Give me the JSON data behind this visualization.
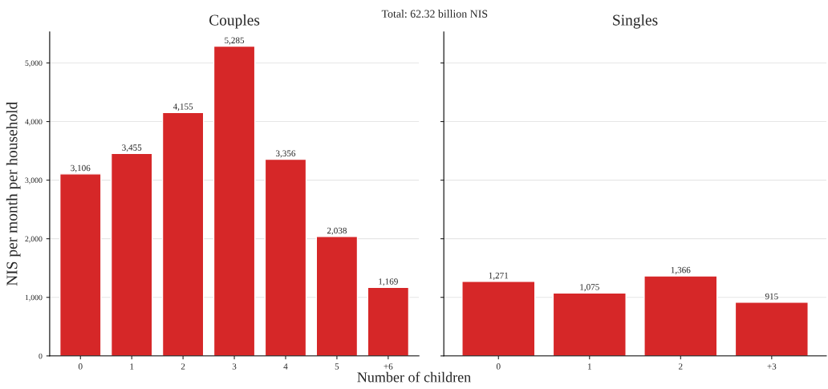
{
  "chart_data": [
    {
      "type": "bar",
      "title": "Couples",
      "ylabel": "NIS per month per household",
      "xlabel": "Number of children",
      "annotations": [
        "Total: 62.32 billion NIS"
      ],
      "categories": [
        "0",
        "1",
        "2",
        "3",
        "4",
        "5",
        "+6"
      ],
      "values": [
        3106,
        3455,
        4155,
        5285,
        3356,
        2038,
        1169
      ],
      "color": "#d62728",
      "ylim": [
        0,
        5530
      ],
      "yticks": [
        {
          "value": 0,
          "label": "0"
        },
        {
          "value": 1000,
          "label": "1,000"
        },
        {
          "value": 2000,
          "label": "2,000"
        },
        {
          "value": 3000,
          "label": "3,000"
        },
        {
          "value": 4000,
          "label": "4,000"
        },
        {
          "value": 5000,
          "label": "5,000"
        }
      ],
      "value_labels": [
        "3,106",
        "3,455",
        "4,155",
        "5,285",
        "3,356",
        "2,038",
        "1,169"
      ],
      "grid": "y"
    },
    {
      "type": "bar",
      "title": "Singles",
      "categories": [
        "0",
        "1",
        "2",
        "+3"
      ],
      "values": [
        1271,
        1075,
        1366,
        915
      ],
      "color": "#d62728",
      "ylim": [
        0,
        5530
      ],
      "yticks": [
        {
          "value": 0,
          "label": null
        },
        {
          "value": 1000,
          "label": null
        },
        {
          "value": 2000,
          "label": null
        },
        {
          "value": 3000,
          "label": null
        },
        {
          "value": 4000,
          "label": null
        },
        {
          "value": 5000,
          "label": null
        }
      ],
      "value_labels": [
        "1,271",
        "1,075",
        "1,366",
        "915"
      ],
      "grid": "y",
      "tick_labels": "x"
    }
  ]
}
